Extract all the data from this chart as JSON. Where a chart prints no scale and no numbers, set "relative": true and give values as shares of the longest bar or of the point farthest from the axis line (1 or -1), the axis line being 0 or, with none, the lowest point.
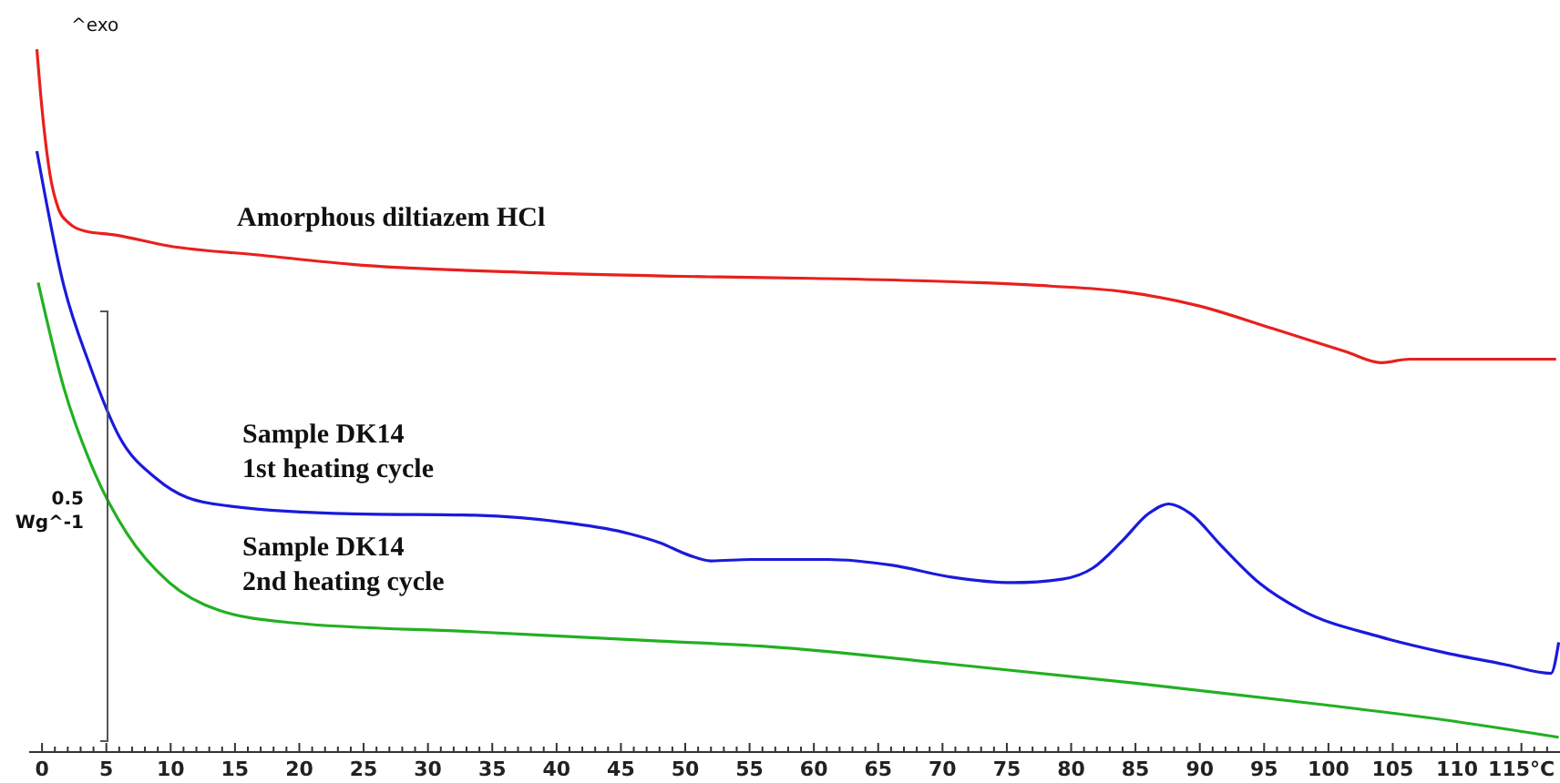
{
  "chart_data": {
    "type": "line",
    "relative": true,
    "xlim": [
      -1,
      118
    ],
    "xticks": [
      0,
      {
        "value": 1,
        "label": null
      },
      {
        "value": 2,
        "label": null
      },
      {
        "value": 3,
        "label": null
      },
      {
        "value": 4,
        "label": null
      },
      5,
      {
        "value": 6,
        "label": null
      },
      {
        "value": 7,
        "label": null
      },
      {
        "value": 8,
        "label": null
      },
      {
        "value": 9,
        "label": null
      },
      10,
      {
        "value": 11,
        "label": null
      },
      {
        "value": 12,
        "label": null
      },
      {
        "value": 13,
        "label": null
      },
      {
        "value": 14,
        "label": null
      },
      15,
      {
        "value": 16,
        "label": null
      },
      {
        "value": 17,
        "label": null
      },
      {
        "value": 18,
        "label": null
      },
      {
        "value": 19,
        "label": null
      },
      20,
      {
        "value": 21,
        "label": null
      },
      {
        "value": 22,
        "label": null
      },
      {
        "value": 23,
        "label": null
      },
      {
        "value": 24,
        "label": null
      },
      25,
      {
        "value": 26,
        "label": null
      },
      {
        "value": 27,
        "label": null
      },
      {
        "value": 28,
        "label": null
      },
      {
        "value": 29,
        "label": null
      },
      30,
      {
        "value": 31,
        "label": null
      },
      {
        "value": 32,
        "label": null
      },
      {
        "value": 33,
        "label": null
      },
      {
        "value": 34,
        "label": null
      },
      35,
      {
        "value": 36,
        "label": null
      },
      {
        "value": 37,
        "label": null
      },
      {
        "value": 38,
        "label": null
      },
      {
        "value": 39,
        "label": null
      },
      40,
      {
        "value": 41,
        "label": null
      },
      {
        "value": 42,
        "label": null
      },
      {
        "value": 43,
        "label": null
      },
      {
        "value": 44,
        "label": null
      },
      45,
      {
        "value": 46,
        "label": null
      },
      {
        "value": 47,
        "label": null
      },
      {
        "value": 48,
        "label": null
      },
      {
        "value": 49,
        "label": null
      },
      50,
      {
        "value": 51,
        "label": null
      },
      {
        "value": 52,
        "label": null
      },
      {
        "value": 53,
        "label": null
      },
      {
        "value": 54,
        "label": null
      },
      55,
      {
        "value": 56,
        "label": null
      },
      {
        "value": 57,
        "label": null
      },
      {
        "value": 58,
        "label": null
      },
      {
        "value": 59,
        "label": null
      },
      60,
      {
        "value": 61,
        "label": null
      },
      {
        "value": 62,
        "label": null
      },
      {
        "value": 63,
        "label": null
      },
      {
        "value": 64,
        "label": null
      },
      65,
      {
        "value": 66,
        "label": null
      },
      {
        "value": 67,
        "label": null
      },
      {
        "value": 68,
        "label": null
      },
      {
        "value": 69,
        "label": null
      },
      70,
      {
        "value": 71,
        "label": null
      },
      {
        "value": 72,
        "label": null
      },
      {
        "value": 73,
        "label": null
      },
      {
        "value": 74,
        "label": null
      },
      75,
      {
        "value": 76,
        "label": null
      },
      {
        "value": 77,
        "label": null
      },
      {
        "value": 78,
        "label": null
      },
      {
        "value": 79,
        "label": null
      },
      80,
      {
        "value": 81,
        "label": null
      },
      {
        "value": 82,
        "label": null
      },
      {
        "value": 83,
        "label": null
      },
      {
        "value": 84,
        "label": null
      },
      85,
      {
        "value": 86,
        "label": null
      },
      {
        "value": 87,
        "label": null
      },
      {
        "value": 88,
        "label": null
      },
      {
        "value": 89,
        "label": null
      },
      90,
      {
        "value": 91,
        "label": null
      },
      {
        "value": 92,
        "label": null
      },
      {
        "value": 93,
        "label": null
      },
      {
        "value": 94,
        "label": null
      },
      95,
      {
        "value": 96,
        "label": null
      },
      {
        "value": 97,
        "label": null
      },
      {
        "value": 98,
        "label": null
      },
      {
        "value": 99,
        "label": null
      },
      100,
      {
        "value": 101,
        "label": null
      },
      {
        "value": 102,
        "label": null
      },
      {
        "value": 103,
        "label": null
      },
      {
        "value": 104,
        "label": null
      },
      105,
      {
        "value": 106,
        "label": null
      },
      {
        "value": 107,
        "label": null
      },
      {
        "value": 108,
        "label": null
      },
      {
        "value": 109,
        "label": null
      },
      110,
      {
        "value": 111,
        "label": null
      },
      {
        "value": 112,
        "label": null
      },
      {
        "value": 113,
        "label": null
      },
      {
        "value": 114,
        "label": null
      },
      {
        "value": 115,
        "label": "115°C"
      },
      {
        "value": 116,
        "label": null
      },
      {
        "value": 117,
        "label": null
      }
    ],
    "annotations": [
      "^exo",
      "0.5 Wg^-1"
    ],
    "grid": false,
    "legend": false,
    "marker": "none",
    "line_style": "solid",
    "series": [
      {
        "name": "Amorphous diltiazem HCl",
        "color": "#e8201e",
        "x": [
          -0.4,
          0,
          0.6,
          1.3,
          2,
          3.4,
          5.6,
          9.9,
          17,
          24.1,
          38.4,
          52.7,
          59.9,
          72.7,
          78.4,
          84.1,
          89.9,
          95.6,
          101.3,
          104.1,
          106.3,
          109.9,
          117.7
        ],
        "values": [
          1.0,
          0.915,
          0.824,
          0.772,
          0.754,
          0.741,
          0.736,
          0.72,
          0.707,
          0.694,
          0.682,
          0.676,
          0.674,
          0.668,
          0.663,
          0.655,
          0.635,
          0.603,
          0.57,
          0.554,
          0.559,
          0.559,
          0.559
        ]
      },
      {
        "name": "Sample DK14 1st heating cycle",
        "color": "#1a1adc",
        "x": [
          -0.4,
          1.7,
          3.7,
          6.0,
          8.9,
          11.3,
          14.6,
          24.1,
          33.7,
          40.9,
          45.6,
          48.0,
          50.3,
          52.0,
          55.1,
          61.1,
          66.0,
          70.7,
          75.4,
          79.3,
          81.7,
          84.0,
          86.0,
          87.6,
          89.3,
          91.7,
          94.6,
          97.9,
          104.0,
          108.9,
          113.6,
          117.3,
          117.9
        ],
        "values": [
          0.855,
          0.663,
          0.551,
          0.449,
          0.389,
          0.362,
          0.35,
          0.339,
          0.337,
          0.326,
          0.311,
          0.298,
          0.28,
          0.272,
          0.274,
          0.274,
          0.266,
          0.249,
          0.241,
          0.246,
          0.262,
          0.301,
          0.339,
          0.353,
          0.339,
          0.293,
          0.241,
          0.202,
          0.164,
          0.142,
          0.125,
          0.112,
          0.156
        ]
      },
      {
        "name": "Sample DK14 2nd heating cycle",
        "color": "#22b022",
        "x": [
          -0.3,
          1.7,
          4.1,
          6.6,
          9.9,
          13.7,
          19.4,
          33.7,
          48.0,
          56.4,
          70.7,
          85.0,
          99.3,
          108.9,
          117.9
        ],
        "values": [
          0.668,
          0.518,
          0.397,
          0.311,
          0.241,
          0.202,
          0.184,
          0.171,
          0.158,
          0.15,
          0.125,
          0.098,
          0.068,
          0.046,
          0.021
        ]
      }
    ]
  }
}
